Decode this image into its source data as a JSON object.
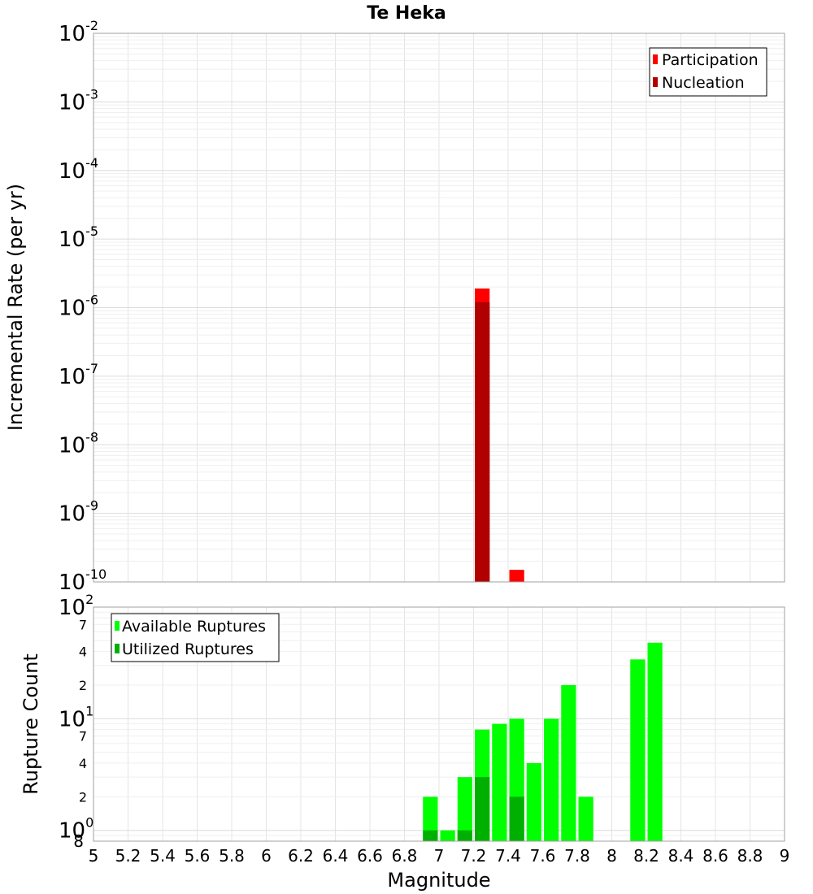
{
  "chart_data": [
    {
      "type": "bar",
      "title": "Te Heka",
      "xlabel": "",
      "ylabel": "Incremental Rate (per yr)",
      "yscale": "log",
      "ylim": [
        1e-10,
        0.01
      ],
      "xlim": [
        5,
        9
      ],
      "grid": true,
      "legend_position": "top-right",
      "bin_width": 0.1,
      "y_tick_labels": [
        {
          "base": "10",
          "exp": "-2"
        },
        {
          "base": "10",
          "exp": "-3"
        },
        {
          "base": "10",
          "exp": "-4"
        },
        {
          "base": "10",
          "exp": "-5"
        },
        {
          "base": "10",
          "exp": "-6"
        },
        {
          "base": "10",
          "exp": "-7"
        },
        {
          "base": "10",
          "exp": "-8"
        },
        {
          "base": "10",
          "exp": "-9"
        },
        {
          "base": "10",
          "exp": "-10"
        }
      ],
      "series": [
        {
          "name": "Participation",
          "color": "#ff0000",
          "x": [
            7.25,
            7.45
          ],
          "values": [
            1.9e-06,
            1.5e-10
          ]
        },
        {
          "name": "Nucleation",
          "color": "#b00000",
          "x": [
            7.25
          ],
          "values": [
            1.2e-06
          ]
        }
      ]
    },
    {
      "type": "bar",
      "xlabel": "Magnitude",
      "ylabel": "Rupture Count",
      "yscale": "log",
      "ylim": [
        0.8,
        100
      ],
      "xlim": [
        5,
        9
      ],
      "grid": true,
      "legend_position": "top-left",
      "bin_width": 0.1,
      "y_major_labels": [
        {
          "base": "10",
          "exp": "2",
          "value": 100
        },
        {
          "base": "10",
          "exp": "1",
          "value": 10
        },
        {
          "base": "10",
          "exp": "0",
          "value": 1
        }
      ],
      "y_minor_labels": [
        {
          "label": "7",
          "value": 70
        },
        {
          "label": "4",
          "value": 40
        },
        {
          "label": "2",
          "value": 20
        },
        {
          "label": "7",
          "value": 7
        },
        {
          "label": "4",
          "value": 4
        },
        {
          "label": "2",
          "value": 2
        },
        {
          "label": "8",
          "value": 0.8
        }
      ],
      "x_tick_labels": [
        "5",
        "5.2",
        "5.4",
        "5.6",
        "5.8",
        "6",
        "6.2",
        "6.4",
        "6.6",
        "6.8",
        "7",
        "7.2",
        "7.4",
        "7.6",
        "7.8",
        "8",
        "8.2",
        "8.4",
        "8.6",
        "8.8",
        "9"
      ],
      "series": [
        {
          "name": "Available Ruptures",
          "color": "#00ff00",
          "x": [
            6.95,
            7.05,
            7.15,
            7.25,
            7.35,
            7.45,
            7.55,
            7.65,
            7.75,
            7.85,
            8.15,
            8.25
          ],
          "values": [
            2,
            1,
            3,
            8,
            9,
            10,
            4,
            10,
            20,
            2,
            34,
            48
          ]
        },
        {
          "name": "Utilized Ruptures",
          "color": "#00b000",
          "x": [
            6.95,
            7.15,
            7.25,
            7.45
          ],
          "values": [
            1,
            1,
            3,
            2
          ]
        }
      ]
    }
  ]
}
